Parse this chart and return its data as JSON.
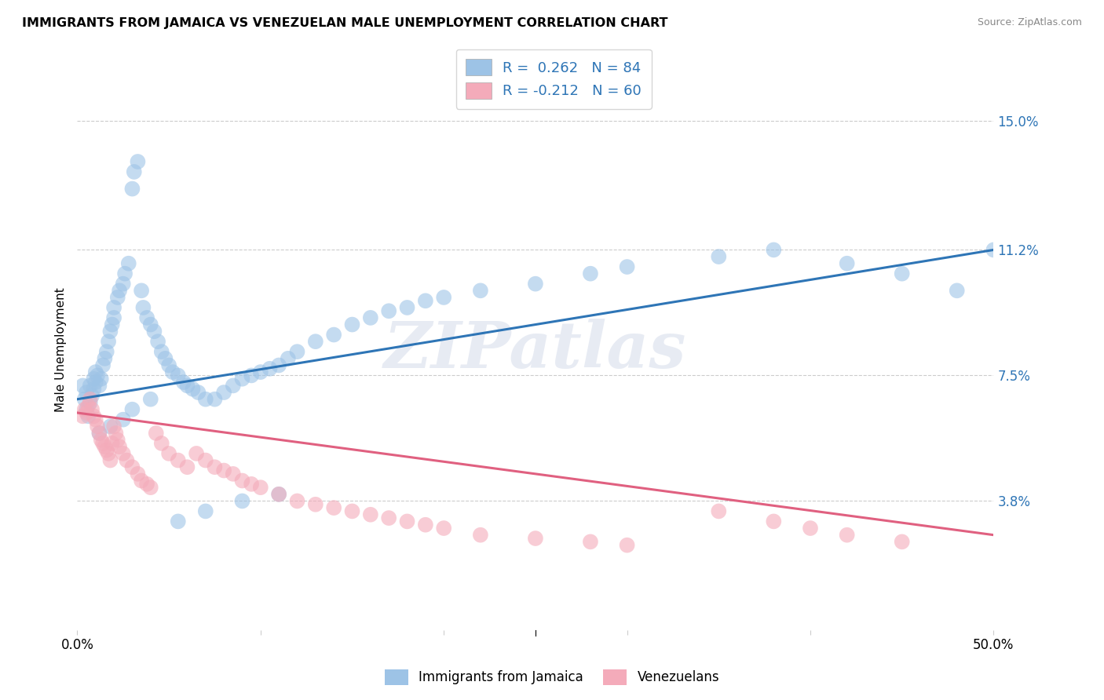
{
  "title": "IMMIGRANTS FROM JAMAICA VS VENEZUELAN MALE UNEMPLOYMENT CORRELATION CHART",
  "source": "Source: ZipAtlas.com",
  "ylabel": "Male Unemployment",
  "ytick_labels": [
    "15.0%",
    "11.2%",
    "7.5%",
    "3.8%"
  ],
  "ytick_values": [
    0.15,
    0.112,
    0.075,
    0.038
  ],
  "xlim": [
    0.0,
    0.5
  ],
  "ylim": [
    0.0,
    0.165
  ],
  "color_blue": "#9DC3E6",
  "color_pink": "#F4ABBA",
  "trendline_blue": "#2E75B6",
  "trendline_pink": "#E06080",
  "watermark": "ZIPatlas",
  "blue_trend_x": [
    0.0,
    0.5
  ],
  "blue_trend_y": [
    0.068,
    0.112
  ],
  "pink_trend_x": [
    0.0,
    0.5
  ],
  "pink_trend_y": [
    0.064,
    0.028
  ],
  "blue_scatter_x": [
    0.003,
    0.004,
    0.005,
    0.005,
    0.006,
    0.007,
    0.007,
    0.008,
    0.009,
    0.009,
    0.01,
    0.01,
    0.011,
    0.012,
    0.013,
    0.014,
    0.015,
    0.016,
    0.017,
    0.018,
    0.019,
    0.02,
    0.02,
    0.022,
    0.023,
    0.025,
    0.026,
    0.028,
    0.03,
    0.031,
    0.033,
    0.035,
    0.036,
    0.038,
    0.04,
    0.042,
    0.044,
    0.046,
    0.048,
    0.05,
    0.052,
    0.055,
    0.058,
    0.06,
    0.063,
    0.066,
    0.07,
    0.075,
    0.08,
    0.085,
    0.09,
    0.095,
    0.1,
    0.105,
    0.11,
    0.115,
    0.12,
    0.13,
    0.14,
    0.15,
    0.16,
    0.17,
    0.18,
    0.19,
    0.2,
    0.22,
    0.25,
    0.28,
    0.3,
    0.35,
    0.38,
    0.42,
    0.45,
    0.48,
    0.5,
    0.012,
    0.018,
    0.025,
    0.03,
    0.04,
    0.055,
    0.07,
    0.09,
    0.11
  ],
  "blue_scatter_y": [
    0.072,
    0.068,
    0.065,
    0.07,
    0.063,
    0.067,
    0.072,
    0.069,
    0.071,
    0.074,
    0.076,
    0.073,
    0.075,
    0.072,
    0.074,
    0.078,
    0.08,
    0.082,
    0.085,
    0.088,
    0.09,
    0.092,
    0.095,
    0.098,
    0.1,
    0.102,
    0.105,
    0.108,
    0.13,
    0.135,
    0.138,
    0.1,
    0.095,
    0.092,
    0.09,
    0.088,
    0.085,
    0.082,
    0.08,
    0.078,
    0.076,
    0.075,
    0.073,
    0.072,
    0.071,
    0.07,
    0.068,
    0.068,
    0.07,
    0.072,
    0.074,
    0.075,
    0.076,
    0.077,
    0.078,
    0.08,
    0.082,
    0.085,
    0.087,
    0.09,
    0.092,
    0.094,
    0.095,
    0.097,
    0.098,
    0.1,
    0.102,
    0.105,
    0.107,
    0.11,
    0.112,
    0.108,
    0.105,
    0.1,
    0.112,
    0.058,
    0.06,
    0.062,
    0.065,
    0.068,
    0.032,
    0.035,
    0.038,
    0.04
  ],
  "pink_scatter_x": [
    0.003,
    0.004,
    0.005,
    0.006,
    0.007,
    0.008,
    0.009,
    0.01,
    0.011,
    0.012,
    0.013,
    0.014,
    0.015,
    0.016,
    0.017,
    0.018,
    0.019,
    0.02,
    0.021,
    0.022,
    0.023,
    0.025,
    0.027,
    0.03,
    0.033,
    0.035,
    0.038,
    0.04,
    0.043,
    0.046,
    0.05,
    0.055,
    0.06,
    0.065,
    0.07,
    0.075,
    0.08,
    0.085,
    0.09,
    0.095,
    0.1,
    0.11,
    0.12,
    0.13,
    0.14,
    0.15,
    0.16,
    0.17,
    0.18,
    0.19,
    0.2,
    0.22,
    0.25,
    0.28,
    0.3,
    0.35,
    0.38,
    0.4,
    0.42,
    0.45
  ],
  "pink_scatter_y": [
    0.063,
    0.065,
    0.064,
    0.066,
    0.068,
    0.065,
    0.063,
    0.062,
    0.06,
    0.058,
    0.056,
    0.055,
    0.054,
    0.053,
    0.052,
    0.05,
    0.055,
    0.06,
    0.058,
    0.056,
    0.054,
    0.052,
    0.05,
    0.048,
    0.046,
    0.044,
    0.043,
    0.042,
    0.058,
    0.055,
    0.052,
    0.05,
    0.048,
    0.052,
    0.05,
    0.048,
    0.047,
    0.046,
    0.044,
    0.043,
    0.042,
    0.04,
    0.038,
    0.037,
    0.036,
    0.035,
    0.034,
    0.033,
    0.032,
    0.031,
    0.03,
    0.028,
    0.027,
    0.026,
    0.025,
    0.035,
    0.032,
    0.03,
    0.028,
    0.026
  ]
}
